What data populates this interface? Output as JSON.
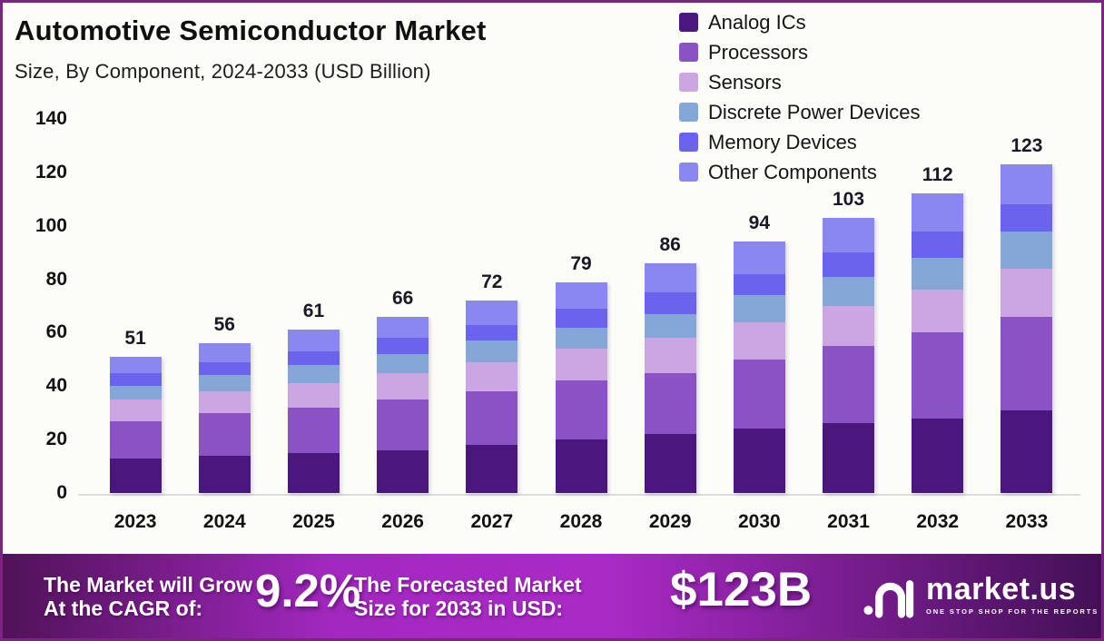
{
  "chart_data": {
    "type": "bar",
    "stacked": true,
    "title": "Automotive Semiconductor Market",
    "subtitle": "Size, By Component, 2024-2033 (USD Billion)",
    "categories": [
      "2023",
      "2024",
      "2025",
      "2026",
      "2027",
      "2028",
      "2029",
      "2030",
      "2031",
      "2032",
      "2033"
    ],
    "series": [
      {
        "name": "Analog ICs",
        "color": "#4A177D",
        "values": [
          13,
          14,
          15,
          16,
          18,
          20,
          22,
          24,
          26,
          28,
          31
        ]
      },
      {
        "name": "Processors",
        "color": "#8A52C5",
        "values": [
          14,
          16,
          17,
          19,
          20,
          22,
          23,
          26,
          29,
          32,
          35
        ]
      },
      {
        "name": "Sensors",
        "color": "#CBA6E3",
        "values": [
          8,
          8,
          9,
          10,
          11,
          12,
          13,
          14,
          15,
          16,
          18
        ]
      },
      {
        "name": "Discrete Power Devices",
        "color": "#85A7D7",
        "values": [
          5,
          6,
          7,
          7,
          8,
          8,
          9,
          10,
          11,
          12,
          14
        ]
      },
      {
        "name": "Memory Devices",
        "color": "#6A63EE",
        "values": [
          5,
          5,
          5,
          6,
          6,
          7,
          8,
          8,
          9,
          10,
          10
        ]
      },
      {
        "name": "Other Components",
        "color": "#8B87F0",
        "values": [
          6,
          7,
          8,
          8,
          9,
          10,
          11,
          12,
          13,
          14,
          15
        ]
      }
    ],
    "totals": [
      51,
      56,
      61,
      66,
      72,
      79,
      86,
      94,
      103,
      112,
      123
    ],
    "xlabel": "",
    "ylabel": "",
    "ylim": [
      0,
      140
    ],
    "yticks": [
      0,
      20,
      40,
      60,
      80,
      100,
      120,
      140
    ],
    "grid": false,
    "legend_position": "top-right",
    "bar_value_labels": true
  },
  "banner": {
    "grow_line1": "The Market will Grow",
    "grow_line2": "At the CAGR of:",
    "cagr_value": "9.2%",
    "forecast_line1": "The Forecasted Market",
    "forecast_line2": "Size for 2033 in USD:",
    "forecast_value": "$123B",
    "brand_name": "market.us",
    "brand_tagline": "ONE STOP SHOP FOR THE REPORTS"
  },
  "colors": {
    "frame_border": "#7D2483",
    "banner_gradient": [
      "#4F1257",
      "#A228BF",
      "#AA2AC6",
      "#431055"
    ],
    "axis_text": "#111111",
    "baseline": "#DCDCDC"
  }
}
